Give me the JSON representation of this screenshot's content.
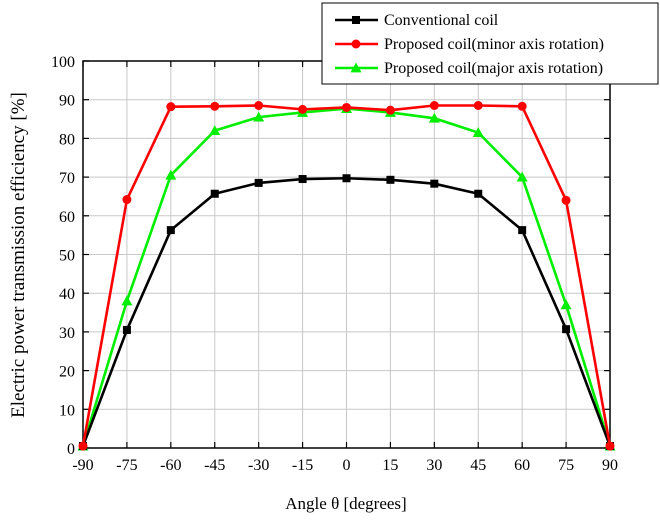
{
  "chart_data": {
    "type": "line",
    "xlabel": "Angle θ [degrees]",
    "ylabel": "Electric power transmission efficiency [%]",
    "x": [
      -90,
      -75,
      -60,
      -45,
      -30,
      -15,
      0,
      15,
      30,
      45,
      60,
      75,
      90
    ],
    "xlim": [
      -90,
      90
    ],
    "ylim": [
      0,
      100
    ],
    "xticks": [
      "-90",
      "-75",
      "-60",
      "-45",
      "-30",
      "-15",
      "0",
      "15",
      "30",
      "45",
      "60",
      "75",
      "90"
    ],
    "yticks": [
      "0",
      "10",
      "20",
      "30",
      "40",
      "50",
      "60",
      "70",
      "80",
      "90",
      "100"
    ],
    "grid": true,
    "legend_position": "top-right",
    "series": [
      {
        "name": "Conventional coil",
        "color": "#000000",
        "marker": "square",
        "values": [
          0.5,
          30.5,
          56.3,
          65.7,
          68.5,
          69.5,
          69.7,
          69.3,
          68.3,
          65.7,
          56.3,
          30.7,
          0.5
        ]
      },
      {
        "name": "Proposed coil(minor axis rotation)",
        "color": "#ff0000",
        "marker": "circle",
        "values": [
          0.5,
          64.2,
          88.2,
          88.3,
          88.5,
          87.5,
          88.0,
          87.3,
          88.5,
          88.5,
          88.3,
          64.0,
          0.5
        ]
      },
      {
        "name": "Proposed coil(major axis rotation)",
        "color": "#00ee00",
        "marker": "triangle",
        "values": [
          0.5,
          38.0,
          70.5,
          82.0,
          85.5,
          86.7,
          87.7,
          86.7,
          85.2,
          81.5,
          70.0,
          37.0,
          0.5
        ]
      }
    ]
  }
}
